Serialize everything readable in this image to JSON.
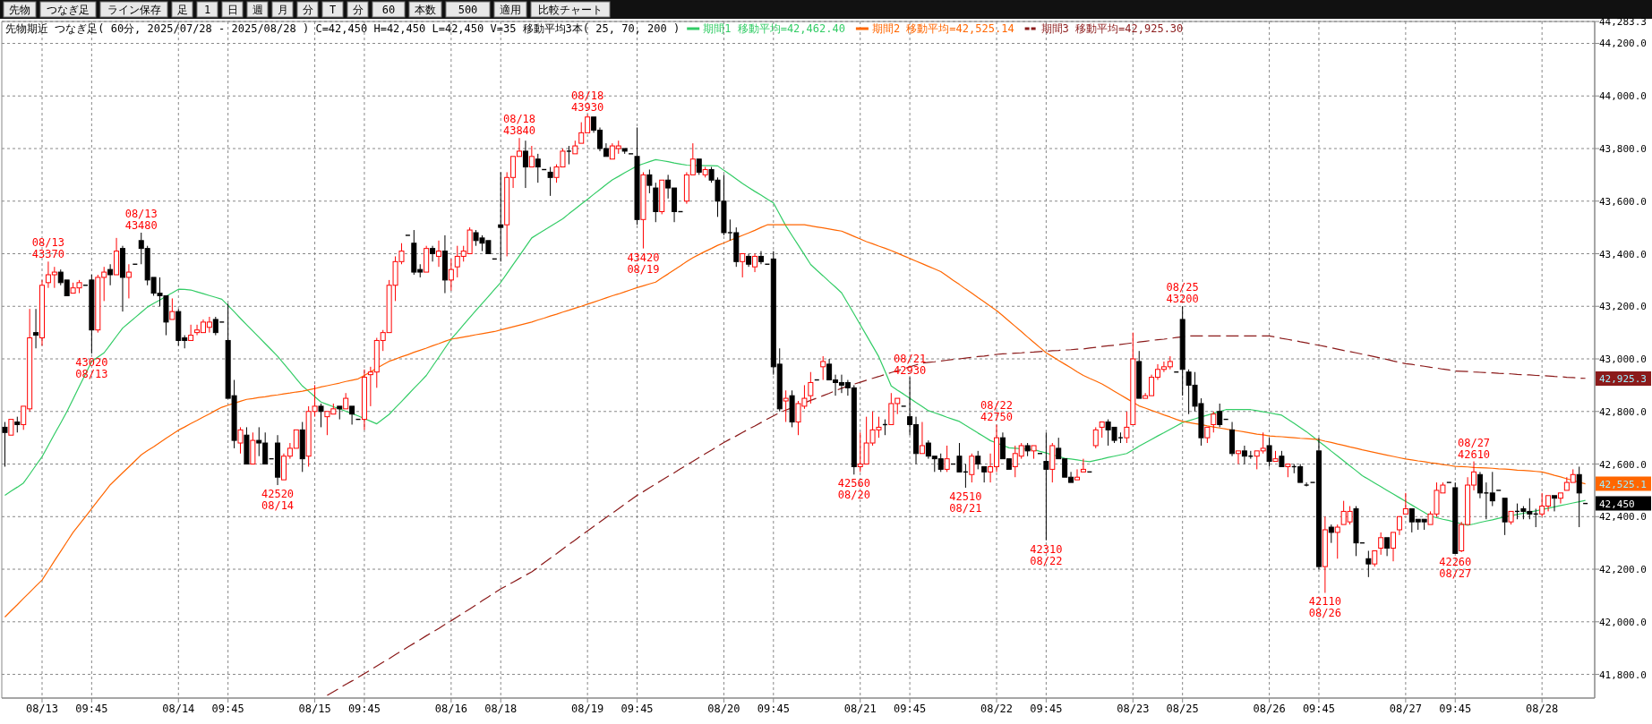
{
  "chart_data": {
    "type": "candlestick",
    "title": "先物期近 つなぎ足( 60分, 2025/07/28 - 2025/08/28 )  C=42,450 H=42,450 L=42,450 V=35    移動平均3本( 25, 70, 200 )",
    "categories": [
      null,
      null,
      null,
      null,
      null,
      null,
      "08/13",
      null,
      null,
      null,
      null,
      null,
      null,
      null,
      "09:45",
      null,
      null,
      null,
      null,
      null,
      null,
      null,
      null,
      null,
      null,
      null,
      null,
      null,
      "08/14",
      null,
      null,
      null,
      null,
      null,
      null,
      null,
      "09:45",
      null,
      null,
      null,
      null,
      null,
      null,
      null,
      null,
      null,
      null,
      null,
      null,
      null,
      "08/15",
      null,
      null,
      null,
      null,
      null,
      null,
      null,
      "09:45",
      null,
      null,
      null,
      null,
      null,
      null,
      null,
      null,
      null,
      null,
      null,
      null,
      null,
      "08/16",
      null,
      null,
      null,
      null,
      null,
      null,
      null,
      "08/18",
      null,
      null,
      null,
      null,
      null,
      null,
      null,
      null,
      null,
      null,
      null,
      null,
      null,
      "08/19",
      null,
      null,
      null,
      null,
      null,
      null,
      null,
      "09:45",
      null,
      null,
      null,
      null,
      null,
      null,
      null,
      null,
      null,
      null,
      null,
      null,
      null,
      "08/20",
      null,
      null,
      null,
      null,
      null,
      null,
      null,
      "09:45",
      null,
      null,
      null,
      null,
      null,
      null,
      null,
      null,
      null,
      null,
      null,
      null,
      null,
      "08/21",
      null,
      null,
      null,
      null,
      null,
      null,
      null,
      "09:45",
      null,
      null,
      null,
      null,
      null,
      null,
      null,
      null,
      null,
      null,
      null,
      null,
      null,
      "08/22",
      null,
      null,
      null,
      null,
      null,
      null,
      null,
      "09:45",
      null,
      null,
      null,
      null,
      null,
      null,
      null,
      null,
      null,
      null,
      null,
      null,
      null,
      "08/23",
      null,
      null,
      null,
      null,
      null,
      null,
      null,
      "08/25",
      null,
      null,
      null,
      null,
      null,
      null,
      null,
      null,
      null,
      null,
      null,
      null,
      null,
      "08/26",
      null,
      null,
      null,
      null,
      null,
      null,
      null,
      "09:45",
      null,
      null,
      null,
      null,
      null,
      null,
      null,
      null,
      null,
      null,
      null,
      null,
      null,
      "08/27",
      null,
      null,
      null,
      null,
      null,
      null,
      null,
      "09:45",
      null,
      null,
      null,
      null,
      null,
      null,
      null,
      null,
      null,
      null,
      null,
      null,
      null,
      "08/28",
      null,
      null,
      null,
      null,
      null,
      null,
      null
    ],
    "ohlc": [
      [
        42740,
        42760,
        42590,
        42720
      ],
      [
        42710,
        42770,
        42710,
        42770
      ],
      [
        42760,
        42780,
        42720,
        42750
      ],
      [
        42750,
        42820,
        42730,
        42820
      ],
      [
        42810,
        43190,
        42800,
        43080
      ],
      [
        43100,
        43190,
        43040,
        43090
      ],
      [
        43080,
        43300,
        43050,
        43280
      ],
      [
        43290,
        43370,
        43270,
        43320
      ],
      [
        43320,
        43350,
        43270,
        43330
      ],
      [
        43330,
        43340,
        43280,
        43290
      ],
      [
        43300,
        43300,
        43240,
        43240
      ],
      [
        43250,
        43290,
        43250,
        43270
      ],
      [
        43270,
        43300,
        43250,
        43290
      ],
      [
        43280,
        43280,
        43280,
        43280
      ],
      [
        43300,
        43320,
        43020,
        43110
      ],
      [
        43110,
        43320,
        43100,
        43310
      ],
      [
        43310,
        43350,
        43220,
        43330
      ],
      [
        43340,
        43360,
        43280,
        43320
      ],
      [
        43320,
        43460,
        43320,
        43410
      ],
      [
        43420,
        43430,
        43180,
        43310
      ],
      [
        43310,
        43360,
        43230,
        43330
      ],
      [
        43360,
        43360,
        43360,
        43360
      ],
      [
        43450,
        43480,
        43360,
        43420
      ],
      [
        43420,
        43430,
        43280,
        43300
      ],
      [
        43310,
        43310,
        43240,
        43250
      ],
      [
        43250,
        43310,
        43200,
        43240
      ],
      [
        43240,
        43240,
        43090,
        43140
      ],
      [
        43150,
        43230,
        43150,
        43180
      ],
      [
        43180,
        43190,
        43050,
        43070
      ],
      [
        43080,
        43090,
        43040,
        43070
      ],
      [
        43070,
        43130,
        43070,
        43090
      ],
      [
        43100,
        43130,
        43090,
        43110
      ],
      [
        43100,
        43150,
        43100,
        43140
      ],
      [
        43120,
        43160,
        43100,
        43140
      ],
      [
        43150,
        43160,
        43090,
        43100
      ],
      [
        43140,
        43140,
        43140,
        43140
      ],
      [
        43070,
        43210,
        42850,
        42850
      ],
      [
        42860,
        42920,
        42660,
        42690
      ],
      [
        42680,
        42740,
        42640,
        42730
      ],
      [
        42710,
        42740,
        42600,
        42600
      ],
      [
        42600,
        42720,
        42600,
        42690
      ],
      [
        42690,
        42740,
        42630,
        42680
      ],
      [
        42680,
        42720,
        42600,
        42600
      ],
      [
        42620,
        42620,
        42620,
        42620
      ],
      [
        42680,
        42710,
        42520,
        42550
      ],
      [
        42540,
        42640,
        42540,
        42630
      ],
      [
        42630,
        42680,
        42620,
        42660
      ],
      [
        42660,
        42730,
        42660,
        42730
      ],
      [
        42730,
        42760,
        42570,
        42620
      ],
      [
        42630,
        42820,
        42590,
        42800
      ],
      [
        42800,
        42900,
        42780,
        42820
      ],
      [
        42820,
        42830,
        42740,
        42800
      ],
      [
        42780,
        42800,
        42710,
        42800
      ],
      [
        42790,
        42830,
        42790,
        42810
      ],
      [
        42820,
        42820,
        42770,
        42810
      ],
      [
        42810,
        42870,
        42810,
        42850
      ],
      [
        42820,
        42820,
        42750,
        42790
      ],
      [
        42770,
        42770,
        42770,
        42770
      ],
      [
        42770,
        42960,
        42730,
        42930
      ],
      [
        42940,
        42970,
        42820,
        42950
      ],
      [
        42950,
        43080,
        42890,
        43070
      ],
      [
        43070,
        43110,
        43030,
        43100
      ],
      [
        43100,
        43300,
        43100,
        43280
      ],
      [
        43280,
        43390,
        43220,
        43370
      ],
      [
        43370,
        43440,
        43360,
        43410
      ],
      [
        43470,
        43470,
        43470,
        43470
      ],
      [
        43440,
        43490,
        43320,
        43330
      ],
      [
        43340,
        43360,
        43310,
        43330
      ],
      [
        43330,
        43430,
        43330,
        43420
      ],
      [
        43420,
        43430,
        43370,
        43400
      ],
      [
        43390,
        43450,
        43350,
        43410
      ],
      [
        43410,
        43470,
        43250,
        43300
      ],
      [
        43300,
        43380,
        43260,
        43340
      ],
      [
        43350,
        43430,
        43310,
        43390
      ],
      [
        43390,
        43430,
        43370,
        43410
      ],
      [
        43400,
        43500,
        43400,
        43490
      ],
      [
        43480,
        43490,
        43430,
        43450
      ],
      [
        43460,
        43470,
        43410,
        43440
      ],
      [
        43450,
        43450,
        43400,
        43400
      ],
      [
        43380,
        43380,
        43380,
        43380
      ],
      [
        43510,
        43710,
        43370,
        43500
      ],
      [
        43510,
        43710,
        43390,
        43690
      ],
      [
        43690,
        43770,
        43650,
        43770
      ],
      [
        43770,
        43840,
        43770,
        43790
      ],
      [
        43790,
        43830,
        43650,
        43730
      ],
      [
        43730,
        43810,
        43730,
        43770
      ],
      [
        43760,
        43780,
        43670,
        43730
      ],
      [
        43720,
        43720,
        43720,
        43720
      ],
      [
        43710,
        43730,
        43620,
        43690
      ],
      [
        43690,
        43740,
        43670,
        43730
      ],
      [
        43730,
        43800,
        43730,
        43790
      ],
      [
        43790,
        43810,
        43740,
        43790
      ],
      [
        43780,
        43830,
        43780,
        43810
      ],
      [
        43820,
        43900,
        43820,
        43860
      ],
      [
        43860,
        43930,
        43860,
        43920
      ],
      [
        43920,
        43920,
        43860,
        43870
      ],
      [
        43870,
        43880,
        43790,
        43800
      ],
      [
        43800,
        43820,
        43770,
        43770
      ],
      [
        43760,
        43820,
        43760,
        43810
      ],
      [
        43800,
        43830,
        43780,
        43810
      ],
      [
        43800,
        43800,
        43780,
        43790
      ],
      [
        43780,
        43780,
        43780,
        43780
      ],
      [
        43770,
        43880,
        43510,
        43530
      ],
      [
        43530,
        43710,
        43420,
        43700
      ],
      [
        43700,
        43720,
        43630,
        43660
      ],
      [
        43650,
        43670,
        43520,
        43560
      ],
      [
        43560,
        43680,
        43550,
        43680
      ],
      [
        43680,
        43700,
        43610,
        43650
      ],
      [
        43650,
        43650,
        43520,
        43560
      ],
      [
        43560,
        43560,
        43560,
        43560
      ],
      [
        43600,
        43710,
        43590,
        43700
      ],
      [
        43700,
        43820,
        43700,
        43760
      ],
      [
        43760,
        43760,
        43700,
        43710
      ],
      [
        43700,
        43730,
        43690,
        43720
      ],
      [
        43720,
        43730,
        43670,
        43680
      ],
      [
        43680,
        43690,
        43540,
        43600
      ],
      [
        43600,
        43700,
        43470,
        43480
      ],
      [
        43480,
        43530,
        43450,
        43480
      ],
      [
        43480,
        43500,
        43350,
        43370
      ],
      [
        43370,
        43400,
        43310,
        43400
      ],
      [
        43390,
        43400,
        43350,
        43360
      ],
      [
        43350,
        43400,
        43330,
        43390
      ],
      [
        43390,
        43410,
        43360,
        43370
      ],
      [
        43360,
        43360,
        43360,
        43360
      ],
      [
        43380,
        43410,
        42940,
        42970
      ],
      [
        42980,
        43040,
        42800,
        42810
      ],
      [
        42840,
        42880,
        42760,
        42850
      ],
      [
        42860,
        42880,
        42740,
        42760
      ],
      [
        42760,
        42840,
        42710,
        42830
      ],
      [
        42820,
        42900,
        42810,
        42850
      ],
      [
        42860,
        42950,
        42830,
        42910
      ],
      [
        42920,
        42920,
        42920,
        42920
      ],
      [
        42970,
        43010,
        42920,
        42990
      ],
      [
        42980,
        43000,
        42920,
        42920
      ],
      [
        42920,
        42940,
        42860,
        42910
      ],
      [
        42910,
        42940,
        42870,
        42900
      ],
      [
        42910,
        42920,
        42860,
        42890
      ],
      [
        42890,
        42900,
        42560,
        42590
      ],
      [
        42590,
        42720,
        42570,
        42600
      ],
      [
        42600,
        42780,
        42600,
        42680
      ],
      [
        42680,
        42800,
        42670,
        42730
      ],
      [
        42730,
        42780,
        42700,
        42740
      ],
      [
        42750,
        42770,
        42710,
        42750
      ],
      [
        42750,
        42870,
        42750,
        42830
      ],
      [
        42830,
        42850,
        42790,
        42850
      ],
      [
        42820,
        42820,
        42820,
        42820
      ],
      [
        42780,
        42930,
        42710,
        42750
      ],
      [
        42750,
        42780,
        42600,
        42640
      ],
      [
        42640,
        42760,
        42640,
        42670
      ],
      [
        42680,
        42690,
        42620,
        42630
      ],
      [
        42630,
        42630,
        42570,
        42620
      ],
      [
        42620,
        42640,
        42570,
        42580
      ],
      [
        42580,
        42670,
        42570,
        42620
      ],
      [
        42600,
        42600,
        42600,
        42600
      ],
      [
        42630,
        42680,
        42570,
        42570
      ],
      [
        42570,
        42600,
        42510,
        42570
      ],
      [
        42560,
        42640,
        42530,
        42630
      ],
      [
        42630,
        42650,
        42580,
        42600
      ],
      [
        42590,
        42590,
        42530,
        42570
      ],
      [
        42570,
        42640,
        42530,
        42590
      ],
      [
        42590,
        42750,
        42570,
        42700
      ],
      [
        42700,
        42720,
        42620,
        42620
      ],
      [
        42620,
        42620,
        42580,
        42580
      ],
      [
        42590,
        42670,
        42550,
        42640
      ],
      [
        42630,
        42680,
        42620,
        42670
      ],
      [
        42670,
        42680,
        42630,
        42650
      ],
      [
        42650,
        42670,
        42620,
        42670
      ],
      [
        42640,
        42640,
        42640,
        42640
      ],
      [
        42610,
        42720,
        42310,
        42580
      ],
      [
        42580,
        42680,
        42530,
        42670
      ],
      [
        42660,
        42700,
        42620,
        42620
      ],
      [
        42620,
        42620,
        42550,
        42550
      ],
      [
        42550,
        42570,
        42530,
        42530
      ],
      [
        42540,
        42580,
        42540,
        42550
      ],
      [
        42570,
        42620,
        42570,
        42580
      ],
      [
        42570,
        42570,
        42570,
        42570
      ],
      [
        42670,
        42740,
        42660,
        42730
      ],
      [
        42740,
        42760,
        42700,
        42760
      ],
      [
        42760,
        42770,
        42670,
        42730
      ],
      [
        42740,
        42740,
        42680,
        42690
      ],
      [
        42700,
        42720,
        42680,
        42700
      ],
      [
        42700,
        42800,
        42680,
        42740
      ],
      [
        42750,
        43100,
        42750,
        43000
      ],
      [
        42990,
        43030,
        42850,
        42850
      ],
      [
        42850,
        42870,
        42850,
        42860
      ],
      [
        42860,
        42940,
        42860,
        42930
      ],
      [
        42930,
        42980,
        42920,
        42960
      ],
      [
        42960,
        42990,
        42950,
        42970
      ],
      [
        42970,
        43010,
        42960,
        42990
      ],
      [
        42950,
        42950,
        42950,
        42950
      ],
      [
        43150,
        43200,
        42860,
        42960
      ],
      [
        42950,
        42960,
        42790,
        42900
      ],
      [
        42900,
        42950,
        42800,
        42820
      ],
      [
        42830,
        42850,
        42670,
        42700
      ],
      [
        42700,
        42740,
        42680,
        42740
      ],
      [
        42750,
        42800,
        42720,
        42790
      ],
      [
        42800,
        42830,
        42740,
        42750
      ],
      [
        42770,
        42770,
        42770,
        42770
      ],
      [
        42730,
        42760,
        42630,
        42640
      ],
      [
        42640,
        42650,
        42600,
        42650
      ],
      [
        42650,
        42670,
        42600,
        42630
      ],
      [
        42630,
        42650,
        42620,
        42630
      ],
      [
        42630,
        42650,
        42580,
        42650
      ],
      [
        42650,
        42720,
        42640,
        42660
      ],
      [
        42670,
        42700,
        42590,
        42610
      ],
      [
        42610,
        42650,
        42610,
        42620
      ],
      [
        42630,
        42650,
        42590,
        42590
      ],
      [
        42590,
        42600,
        42550,
        42600
      ],
      [
        42590,
        42600,
        42565,
        42590
      ],
      [
        42590,
        42600,
        42530,
        42530
      ],
      [
        42520,
        42530,
        42515,
        42520
      ],
      [
        42530,
        42530,
        42530,
        42530
      ],
      [
        42650,
        42700,
        42200,
        42210
      ],
      [
        42210,
        42400,
        42110,
        42350
      ],
      [
        42360,
        42370,
        42300,
        42340
      ],
      [
        42340,
        42370,
        42240,
        42360
      ],
      [
        42370,
        42460,
        42370,
        42420
      ],
      [
        42380,
        42440,
        42370,
        42420
      ],
      [
        42430,
        42440,
        42250,
        42300
      ],
      [
        42300,
        42300,
        42300,
        42300
      ],
      [
        42240,
        42270,
        42170,
        42220
      ],
      [
        42220,
        42270,
        42210,
        42270
      ],
      [
        42280,
        42340,
        42255,
        42320
      ],
      [
        42320,
        42320,
        42250,
        42280
      ],
      [
        42280,
        42340,
        42230,
        42340
      ],
      [
        42350,
        42400,
        42330,
        42400
      ],
      [
        42410,
        42490,
        42410,
        42430
      ],
      [
        42430,
        42430,
        42340,
        42380
      ],
      [
        42390,
        42390,
        42350,
        42380
      ],
      [
        42390,
        42390,
        42350,
        42380
      ],
      [
        42370,
        42420,
        42370,
        42410
      ],
      [
        42410,
        42530,
        42400,
        42500
      ],
      [
        42490,
        42530,
        42490,
        42520
      ],
      [
        42530,
        42530,
        42530,
        42530
      ],
      [
        42510,
        42530,
        42260,
        42260
      ],
      [
        42270,
        42380,
        42265,
        42370
      ],
      [
        42370,
        42550,
        42370,
        42520
      ],
      [
        42520,
        42610,
        42500,
        42570
      ],
      [
        42560,
        42570,
        42470,
        42490
      ],
      [
        42490,
        42530,
        42390,
        42490
      ],
      [
        42490,
        42570,
        42440,
        42460
      ],
      [
        42500,
        42500,
        42500,
        42500
      ],
      [
        42470,
        42470,
        42330,
        42380
      ],
      [
        42380,
        42420,
        42370,
        42420
      ],
      [
        42420,
        42450,
        42390,
        42420
      ],
      [
        42430,
        42440,
        42390,
        42420
      ],
      [
        42420,
        42470,
        42390,
        42410
      ],
      [
        42410,
        42430,
        42360,
        42410
      ],
      [
        42410,
        42490,
        42400,
        42440
      ],
      [
        42440,
        42480,
        42420,
        42480
      ],
      [
        42480,
        42480,
        42420,
        42470
      ],
      [
        42470,
        42490,
        42450,
        42490
      ],
      [
        42500,
        42550,
        42500,
        42530
      ],
      [
        42530,
        42580,
        42530,
        42560
      ],
      [
        42560,
        42590,
        42360,
        42490
      ],
      [
        42450,
        42450,
        42450,
        42450
      ]
    ],
    "series": [
      {
        "name": "期間1 移動平均=42,462.40",
        "type": "line",
        "color": "#33cc66",
        "values": [
          42481,
          42497,
          42512,
          42528,
          42561,
          42595,
          42628,
          42671,
          42714,
          42756,
          42799,
          42847,
          42895,
          42942,
          42990,
          43007,
          43023,
          43054,
          43086,
          43117,
          43137,
          43157,
          43177,
          43197,
          43211,
          43224,
          43238,
          43251,
          43265,
          43264,
          43262,
          43255,
          43248,
          43241,
          43234,
          43227,
          43203,
          43179,
          43154,
          43130,
          43106,
          43082,
          43058,
          43034,
          43010,
          42982,
          42954,
          42925,
          42897,
          42877,
          42856,
          42836,
          42827,
          42818,
          42810,
          42801,
          42792,
          42783,
          42773,
          42763,
          42753,
          42771,
          42789,
          42814,
          42838,
          42863,
          42888,
          42912,
          42937,
          42972,
          43006,
          43041,
          43075,
          43102,
          43130,
          43157,
          43184,
          43211,
          43237,
          43264,
          43291,
          43325,
          43359,
          43392,
          43426,
          43460,
          43475,
          43489,
          43504,
          43518,
          43533,
          43552,
          43570,
          43589,
          43607,
          43626,
          43644,
          43663,
          43681,
          43694,
          43708,
          43721,
          43734,
          43742,
          43750,
          43758,
          43754,
          43750,
          43745,
          43741,
          43737,
          43736,
          43736,
          43735,
          43735,
          43734,
          43717,
          43701,
          43684,
          43667,
          43652,
          43637,
          43623,
          43608,
          43593,
          43550,
          43506,
          43469,
          43433,
          43396,
          43359,
          43337,
          43316,
          43294,
          43273,
          43251,
          43211,
          43171,
          43130,
          43090,
          43049,
          43008,
          42953,
          42897,
          42881,
          42866,
          42850,
          42834,
          42819,
          42803,
          42795,
          42787,
          42778,
          42770,
          42762,
          42747,
          42733,
          42718,
          42704,
          42689,
          42680,
          42671,
          42662,
          42660,
          42658,
          42657,
          42655,
          42648,
          42642,
          42635,
          42629,
          42622,
          42619,
          42616,
          42612,
          42609,
          42614,
          42619,
          42625,
          42630,
          42635,
          42640,
          42654,
          42668,
          42681,
          42694,
          42707,
          42719,
          42732,
          42745,
          42758,
          42765,
          42772,
          42779,
          42786,
          42793,
          42800,
          42807,
          42807,
          42807,
          42807,
          42807,
          42803,
          42799,
          42795,
          42790,
          42786,
          42770,
          42755,
          42739,
          42723,
          42705,
          42686,
          42668,
          42649,
          42631,
          42612,
          42593,
          42575,
          42556,
          42542,
          42528,
          42514,
          42500,
          42486,
          42472,
          42458,
          42444,
          42430,
          42416,
          42402,
          42396,
          42390,
          42385,
          42379,
          42373,
          42367,
          42372,
          42378,
          42383,
          42388,
          42394,
          42399,
          42404,
          42408,
          42413,
          42418,
          42422,
          42427,
          42432,
          42437,
          42442,
          42447,
          42452,
          42457,
          42462
        ]
      },
      {
        "name": "期間2 移動平均=42,525.14",
        "type": "line",
        "color": "#ff6600",
        "values": [
          42018,
          42042,
          42065,
          42089,
          42112,
          42136,
          42159,
          42195,
          42232,
          42268,
          42304,
          42340,
          42370,
          42400,
          42430,
          42461,
          42491,
          42521,
          42544,
          42567,
          42589,
          42612,
          42635,
          42651,
          42666,
          42682,
          42698,
          42713,
          42729,
          42741,
          42754,
          42766,
          42779,
          42791,
          42804,
          42816,
          42824,
          42831,
          42839,
          42846,
          42849,
          42853,
          42856,
          42860,
          42863,
          42867,
          42870,
          42874,
          42877,
          42882,
          42887,
          42893,
          42898,
          42903,
          42908,
          42914,
          42919,
          42924,
          42937,
          42951,
          42964,
          42978,
          42991,
          42999,
          43008,
          43016,
          43025,
          43033,
          43041,
          43050,
          43058,
          43067,
          43075,
          43079,
          43083,
          43087,
          43092,
          43096,
          43100,
          43104,
          43110,
          43116,
          43122,
          43128,
          43134,
          43140,
          43148,
          43155,
          43163,
          43170,
          43178,
          43185,
          43193,
          43200,
          43208,
          43216,
          43224,
          43232,
          43240,
          43247,
          43255,
          43263,
          43271,
          43278,
          43285,
          43292,
          43308,
          43323,
          43339,
          43354,
          43370,
          43385,
          43397,
          43409,
          43420,
          43432,
          43441,
          43451,
          43460,
          43470,
          43479,
          43489,
          43500,
          43510,
          43510,
          43510,
          43510,
          43510,
          43510,
          43510,
          43506,
          43502,
          43498,
          43494,
          43490,
          43486,
          43476,
          43466,
          43456,
          43446,
          43438,
          43429,
          43421,
          43412,
          43402,
          43392,
          43382,
          43372,
          43362,
          43352,
          43342,
          43332,
          43316,
          43299,
          43283,
          43266,
          43250,
          43233,
          43217,
          43200,
          43184,
          43164,
          43144,
          43124,
          43104,
          43083,
          43063,
          43043,
          43023,
          43009,
          42994,
          42980,
          42966,
          42951,
          42937,
          42926,
          42916,
          42905,
          42891,
          42877,
          42863,
          42849,
          42835,
          42821,
          42813,
          42804,
          42796,
          42787,
          42779,
          42770,
          42762,
          42758,
          42754,
          42750,
          42745,
          42741,
          42737,
          42733,
          42729,
          42726,
          42722,
          42718,
          42714,
          42711,
          42707,
          42705,
          42704,
          42702,
          42700,
          42698,
          42697,
          42695,
          42693,
          42687,
          42682,
          42676,
          42671,
          42665,
          42660,
          42654,
          42649,
          42644,
          42639,
          42634,
          42629,
          42624,
          42619,
          42616,
          42612,
          42609,
          42605,
          42602,
          42598,
          42595,
          42591,
          42590,
          42589,
          42587,
          42586,
          42585,
          42584,
          42582,
          42581,
          42579,
          42577,
          42576,
          42574,
          42572,
          42570,
          42564,
          42557,
          42551,
          42544,
          42538,
          42531,
          42525
        ]
      },
      {
        "name": "期間3 移動平均=42,925.30",
        "type": "line",
        "color": "#8b1a1a",
        "line_style": "dashed",
        "values": [
          null,
          null,
          null,
          null,
          null,
          null,
          null,
          null,
          null,
          null,
          null,
          null,
          null,
          null,
          null,
          null,
          null,
          null,
          null,
          null,
          null,
          null,
          null,
          null,
          null,
          null,
          null,
          null,
          null,
          null,
          null,
          null,
          null,
          null,
          null,
          null,
          null,
          null,
          null,
          null,
          null,
          null,
          null,
          null,
          null,
          null,
          null,
          null,
          null,
          null,
          null,
          null,
          41720,
          41734,
          41748,
          41762,
          41775,
          41789,
          41803,
          41817,
          41832,
          41846,
          41860,
          41875,
          41889,
          41904,
          41918,
          41932,
          41947,
          41961,
          41975,
          41990,
          42004,
          42019,
          42034,
          42049,
          42064,
          42080,
          42095,
          42110,
          42125,
          42138,
          42151,
          42164,
          42177,
          42190,
          42207,
          42225,
          42242,
          42259,
          42277,
          42294,
          42311,
          42329,
          42346,
          42363,
          42380,
          42397,
          42413,
          42430,
          42447,
          42464,
          42481,
          42495,
          42510,
          42524,
          42539,
          42553,
          42567,
          42582,
          42596,
          42610,
          42625,
          42639,
          42653,
          42668,
          42682,
          42695,
          42707,
          42720,
          42733,
          42745,
          42758,
          42771,
          42783,
          42796,
          42805,
          42814,
          null,
          42833,
          42842,
          42851,
          42860,
          42869,
          42879,
          42888,
          42897,
          42904,
          42911,
          42919,
          42926,
          42933,
          42941,
          42948,
          42955,
          42962,
          42970,
          42977,
          42984,
          42987,
          42989,
          42992,
          42995,
          42998,
          43000,
          43003,
          43006,
          43009,
          43011,
          43014,
          43017,
          43019,
          43020,
          43022,
          43023,
          43025,
          43026,
          43028,
          43029,
          43031,
          43032,
          43034,
          43035,
          43037,
          43038,
          43041,
          43044,
          43047,
          43050,
          43052,
          43055,
          43058,
          43061,
          43064,
          43067,
          43070,
          43073,
          43075,
          43078,
          43081,
          43084,
          43087,
          43087,
          43087,
          43087,
          43087,
          43087,
          43087,
          43087,
          43087,
          43087,
          43087,
          43087,
          43087,
          43087,
          43083,
          43078,
          43074,
          43070,
          43065,
          43061,
          43056,
          43052,
          43047,
          43042,
          43037,
          43032,
          43028,
          43023,
          43018,
          43013,
          43008,
          43003,
          42998,
          42992,
          42987,
          42982,
          42979,
          42975,
          42972,
          42968,
          42965,
          42961,
          42958,
          42954,
          42953,
          42952,
          42950,
          42949,
          42948,
          42947,
          42945,
          42944,
          42943,
          42941,
          42940,
          42939,
          42937,
          42936,
          42935,
          42933,
          42932,
          42930,
          42929,
          42927,
          42926
        ]
      }
    ],
    "ylim": [
      41710,
      44283.3
    ],
    "yticks": [
      {
        "value": 41800,
        "label": "41,800.0"
      },
      {
        "value": 42000,
        "label": "42,000.0"
      },
      {
        "value": 42200,
        "label": "42,200.0"
      },
      {
        "value": 42400,
        "label": "42,400.0"
      },
      {
        "value": 42600,
        "label": "42,600.0"
      },
      {
        "value": 42800,
        "label": "42,800.0"
      },
      {
        "value": 43000,
        "label": "43,000.0"
      },
      {
        "value": 43200,
        "label": "43,200.0"
      },
      {
        "value": 43400,
        "label": "43,400.0"
      },
      {
        "value": 43600,
        "label": "43,600.0"
      },
      {
        "value": 43800,
        "label": "43,800.0"
      },
      {
        "value": 44000,
        "label": "44,000.0"
      },
      {
        "value": 44200,
        "label": "44,200.0"
      },
      {
        "value": 44283.3,
        "label": "44,283.3"
      }
    ],
    "grid": true,
    "legend": "top",
    "ref_lines": [
      {
        "axis": "y",
        "value": 42925.3,
        "label": "42,925.3",
        "color": "#8b1a1a"
      },
      {
        "axis": "y",
        "value": 42525.1,
        "label": "42,525.1",
        "color": "#ff6600"
      },
      {
        "axis": "y",
        "value": 42450,
        "label": "42,450",
        "color": "#000000"
      }
    ],
    "annotations": [
      "先物",
      "つなぎ足",
      "ライン保存",
      "足",
      "1",
      "日",
      "週",
      "月",
      "分",
      "T",
      "分",
      "60",
      "本数",
      "500",
      "適用",
      "比較チャート",
      {
        "text": "08/13\n43370",
        "y": 43370
      },
      {
        "text": "08/13\n43480",
        "y": 43480
      },
      {
        "text": "08/18\n43840",
        "y": 43840
      },
      {
        "text": "08/18\n43930",
        "y": 43930
      },
      {
        "text": "08/21\n42930",
        "y": 42930
      },
      {
        "text": "08/22\n42750",
        "y": 42750
      },
      {
        "text": "08/25\n43200",
        "y": 43200
      },
      {
        "text": "08/27\n42610",
        "y": 42610
      },
      {
        "text": "43020\n08/13",
        "y": 43020
      },
      {
        "text": "42520\n08/14",
        "y": 42520
      },
      {
        "text": "43420\n08/19",
        "y": 43420
      },
      {
        "text": "42560\n08/20",
        "y": 42560
      },
      {
        "text": "42510\n08/21",
        "y": 42510
      },
      {
        "text": "42310\n08/22",
        "y": 42310
      },
      {
        "text": "42110\n08/26",
        "y": 42110
      },
      {
        "text": "42260\n08/27",
        "y": 42260
      }
    ]
  }
}
